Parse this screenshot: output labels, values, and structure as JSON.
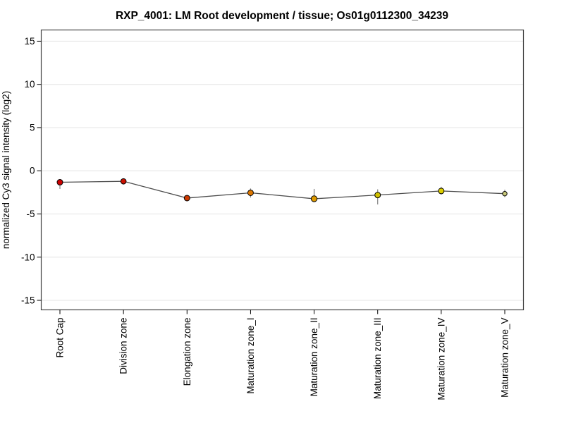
{
  "window": {
    "background": "#ffffff"
  },
  "chart_data": {
    "type": "line",
    "title": "RXP_4001: LM Root development / tissue; Os01g0112300_34239",
    "xlabel": "",
    "ylabel": "normalized Cy3 signal intensity (log2)",
    "categories": [
      "Root Cap",
      "Division zone",
      "Elongation zone",
      "Maturation zone_I",
      "Maturation zone_II",
      "Maturation zone_III",
      "Maturation zone_IV",
      "Maturation zone_V"
    ],
    "series": [
      {
        "name": "normalized Cy3 signal intensity (log2)",
        "values": [
          -1.33,
          -1.22,
          -3.16,
          -2.55,
          -3.24,
          -2.81,
          -2.34,
          -2.65
        ],
        "error_low": [
          -2.1,
          -1.6,
          -3.3,
          -3.1,
          -3.6,
          -3.9,
          -2.75,
          -3.05
        ],
        "error_high": [
          -1.1,
          -0.9,
          -3.0,
          -2.05,
          -2.1,
          -2.15,
          -1.85,
          -2.2
        ],
        "point_colors": [
          "#cc0000",
          "#cc1100",
          "#cc3a00",
          "#dd7700",
          "#dd9900",
          "#cfc000",
          "#ddce00",
          "#c9c97a"
        ],
        "point_radii": [
          4,
          3.8,
          4,
          4,
          4.2,
          4,
          4,
          3.2
        ]
      }
    ],
    "yticks": [
      15,
      10,
      5,
      0,
      -5,
      -10,
      -15
    ],
    "ylim": [
      -16.1,
      16.3
    ],
    "grid": "horizontal",
    "legend": "none",
    "colors": {
      "line": "#4d4d4d",
      "error_bar": "#808080",
      "grid": "#e4e4e4",
      "box": "#444444",
      "point_stroke": "#000000",
      "tick": "#000000"
    }
  }
}
